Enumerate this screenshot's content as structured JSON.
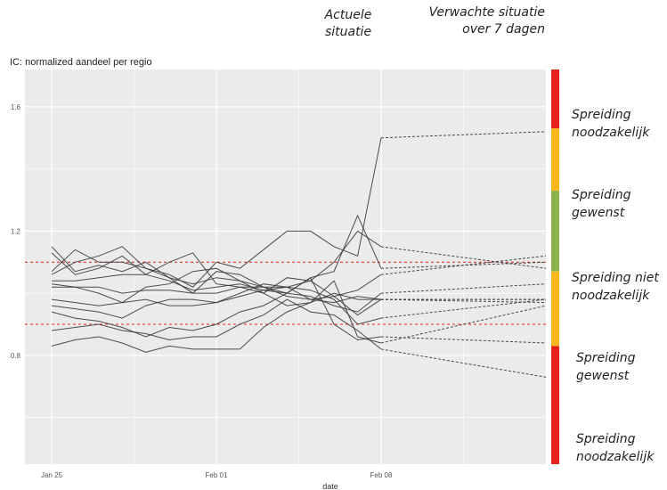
{
  "annotations": {
    "current_situation": "Actuele situatie",
    "expected_situation": "Verwachte situatie over 7 dagen"
  },
  "chart_data": {
    "type": "line",
    "title": "",
    "subtitle": "IC: normalized aandeel per regio",
    "xlabel": "date",
    "ylabel": "",
    "x": [
      "2021-01-25",
      "2021-01-26",
      "2021-01-27",
      "2021-01-28",
      "2021-01-29",
      "2021-01-30",
      "2021-01-31",
      "2021-02-01",
      "2021-02-02",
      "2021-02-03",
      "2021-02-04",
      "2021-02-05",
      "2021-02-06",
      "2021-02-07",
      "2021-02-08"
    ],
    "forecast_x": [
      "2021-02-08",
      "2021-02-15"
    ],
    "x_ticks": [
      "Jan 25",
      "Feb 01",
      "Feb 08"
    ],
    "y_ticks": [
      "0.8",
      "1.2",
      "1.6"
    ],
    "ylim": [
      0.45,
      1.72
    ],
    "grid": true,
    "reference_lines": [
      1.1,
      0.9
    ],
    "series": [
      {
        "values": [
          1.15,
          1.07,
          1.09,
          1.07,
          1.1,
          1.05,
          1.03,
          1.05,
          1.04,
          1.02,
          1.0,
          1.05,
          1.07,
          1.25,
          1.08
        ],
        "forecast": 1.1
      },
      {
        "values": [
          1.13,
          1.06,
          1.08,
          1.12,
          1.06,
          1.1,
          1.13,
          1.03,
          1.02,
          1.02,
          0.99,
          0.98,
          0.99,
          1.01,
          1.06
        ],
        "forecast": 1.12
      },
      {
        "values": [
          1.07,
          1.14,
          1.1,
          1.1,
          1.08,
          1.05,
          1.0,
          1.07,
          1.06,
          1.02,
          1.02,
          0.98,
          0.97,
          0.99,
          0.98
        ],
        "forecast": 0.98
      },
      {
        "values": [
          1.06,
          1.1,
          1.12,
          1.15,
          1.08,
          1.06,
          1.02,
          1.1,
          1.08,
          1.14,
          1.2,
          1.2,
          1.15,
          1.12,
          1.5
        ],
        "forecast": 1.52
      },
      {
        "values": [
          1.04,
          1.04,
          1.05,
          1.06,
          1.06,
          1.04,
          1.01,
          1.02,
          1.03,
          1.01,
          1.02,
          1.04,
          1.1,
          1.2,
          1.15
        ],
        "forecast": 1.08
      },
      {
        "values": [
          1.03,
          1.02,
          1.0,
          0.97,
          1.02,
          1.03,
          1.07,
          1.08,
          1.04,
          1.0,
          0.96,
          0.97,
          1.0,
          0.98,
          0.98
        ],
        "forecast": 0.98
      },
      {
        "values": [
          1.02,
          1.02,
          1.02,
          1.0,
          1.01,
          1.01,
          1.0,
          1.0,
          1.02,
          1.0,
          1.05,
          1.04,
          0.99,
          0.93,
          0.98
        ],
        "forecast": 0.97
      },
      {
        "values": [
          0.98,
          0.97,
          0.96,
          0.97,
          0.98,
          0.96,
          0.96,
          0.97,
          0.99,
          1.01,
          1.0,
          0.99,
          0.96,
          0.94,
          1.0
        ],
        "forecast": 1.03
      },
      {
        "values": [
          0.96,
          0.95,
          0.94,
          0.92,
          0.96,
          0.98,
          0.98,
          0.97,
          1.0,
          1.03,
          1.02,
          1.01,
          0.98,
          0.9,
          0.92
        ],
        "forecast": 0.98
      },
      {
        "values": [
          0.94,
          0.92,
          0.91,
          0.89,
          0.86,
          0.89,
          0.88,
          0.9,
          0.94,
          0.96,
          1.0,
          1.05,
          0.9,
          0.85,
          0.86
        ],
        "forecast": 0.84
      },
      {
        "values": [
          0.88,
          0.89,
          0.9,
          0.88,
          0.87,
          0.85,
          0.86,
          0.86,
          0.9,
          0.93,
          0.98,
          0.94,
          0.93,
          0.88,
          0.82
        ],
        "forecast": 0.73
      },
      {
        "values": [
          0.83,
          0.85,
          0.86,
          0.84,
          0.81,
          0.83,
          0.82,
          0.82,
          0.82,
          0.89,
          0.94,
          0.97,
          1.04,
          0.86,
          0.84
        ],
        "forecast": 0.96
      }
    ],
    "zones": [
      {
        "label": "Spreiding noodzakelijk",
        "color": "#e5231b",
        "from": 1.53,
        "to": 1.72
      },
      {
        "label": "Spreiding gewenst",
        "color": "#f7b81c",
        "from": 1.33,
        "to": 1.53
      },
      {
        "label": "Spreiding niet noodzakelijk",
        "color": "#8db34d",
        "from": 1.07,
        "to": 1.33
      },
      {
        "label": "Spreiding gewenst",
        "color": "#f7b81c",
        "from": 0.83,
        "to": 1.07
      },
      {
        "label": "Spreiding noodzakelijk",
        "color": "#e5231b",
        "from": 0.45,
        "to": 0.83
      }
    ],
    "colors": {
      "panel": "#ebebeb",
      "grid": "#ffffff",
      "line": "#3a3a3a",
      "reference": "#e5231b"
    }
  }
}
